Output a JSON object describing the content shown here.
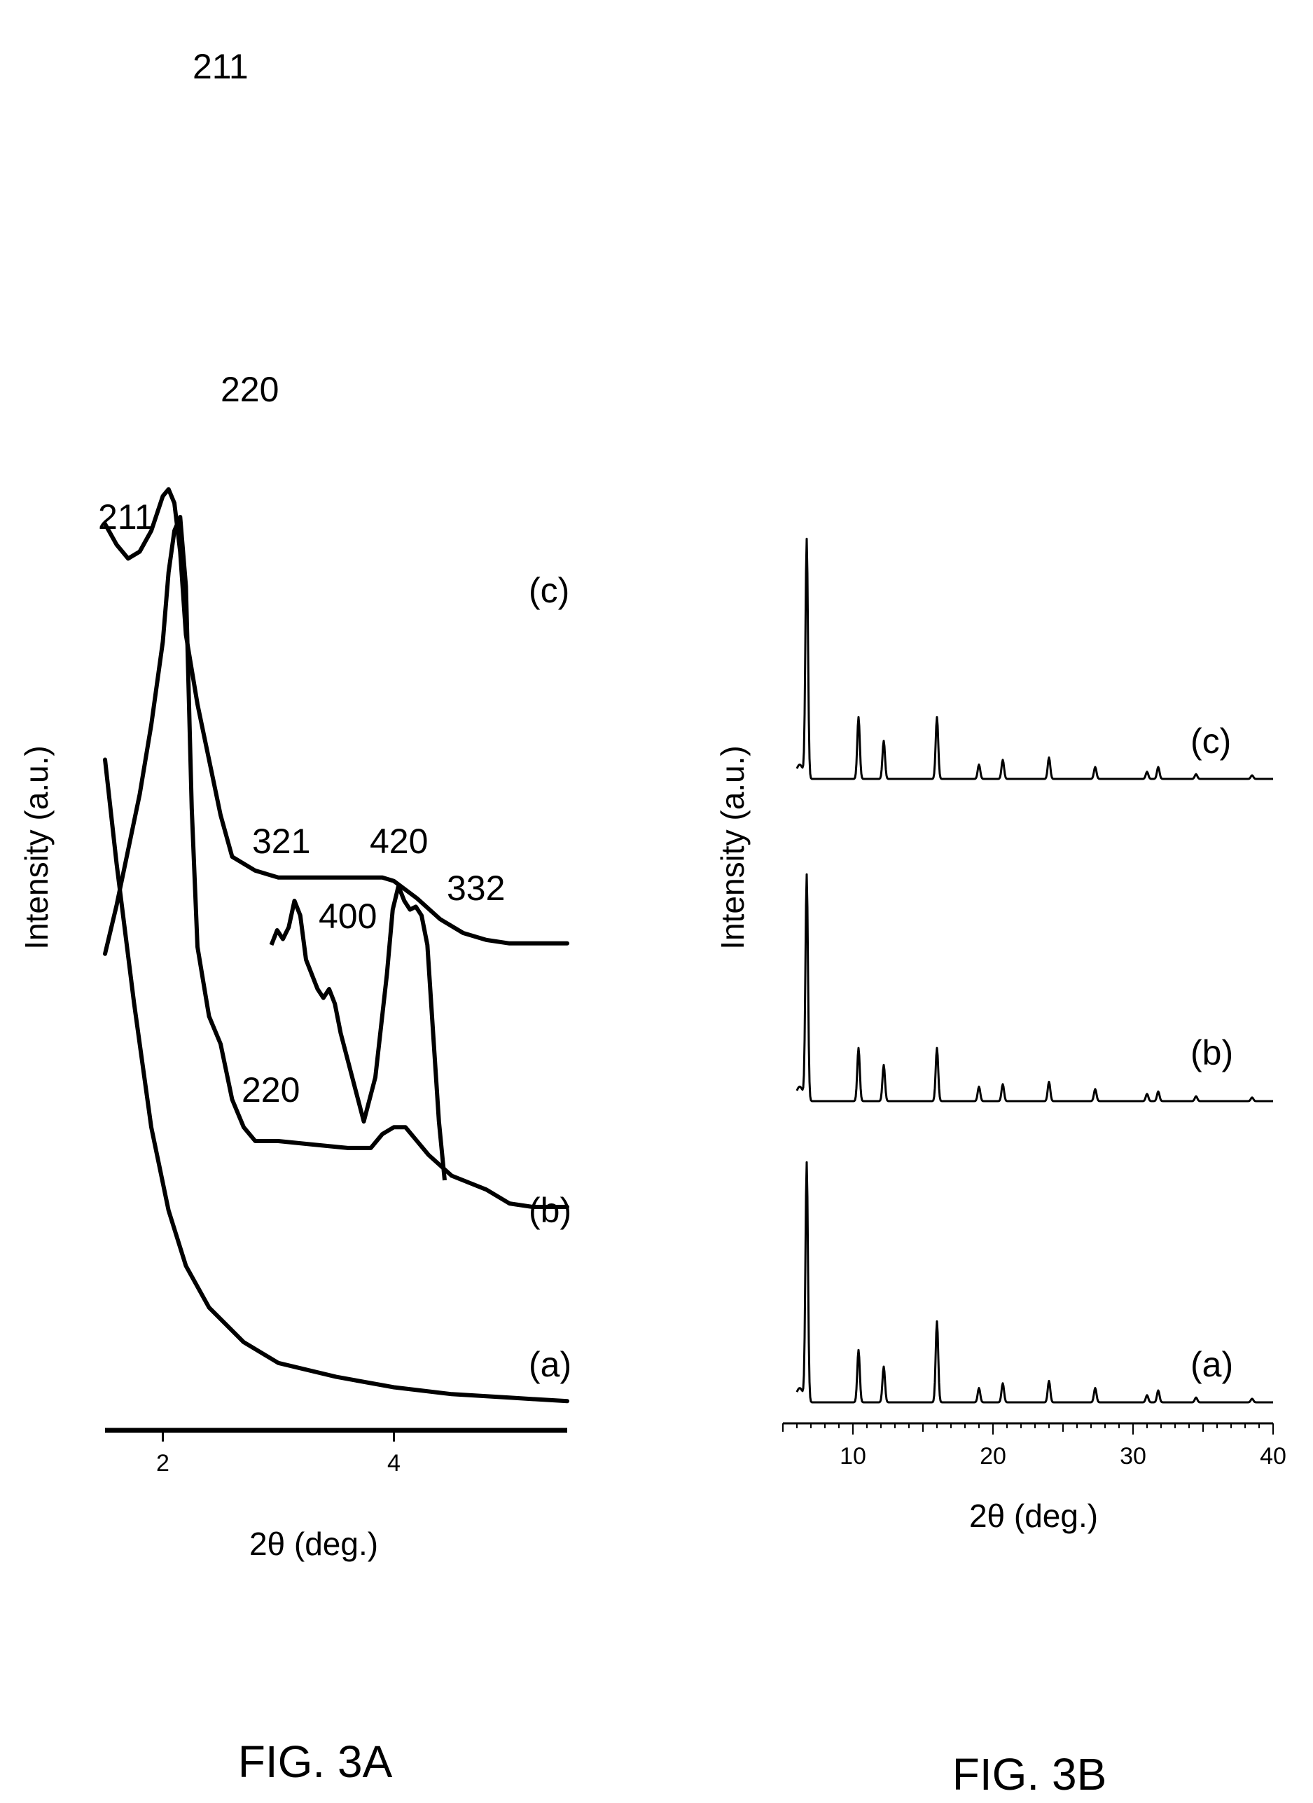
{
  "chart_data": [
    {
      "id": "fig3a",
      "type": "line",
      "caption": "FIG. 3A",
      "xlabel": "2θ (deg.)",
      "ylabel": "Intensity (a.u.)",
      "xlim": [
        1.5,
        5.5
      ],
      "xticks": [
        2,
        4
      ],
      "stacked": true,
      "grid": false,
      "series": [
        {
          "name": "(a)",
          "offset": 0,
          "x": [
            1.5,
            1.6,
            1.75,
            1.9,
            2.05,
            2.2,
            2.4,
            2.7,
            3.0,
            3.5,
            4.0,
            4.5,
            5.0,
            5.5
          ],
          "y": [
            95,
            80,
            60,
            42,
            30,
            22,
            16,
            11,
            8,
            6,
            4.5,
            3.5,
            3,
            2.5
          ]
        },
        {
          "name": "(b)",
          "offset": 30,
          "x": [
            1.5,
            1.6,
            1.7,
            1.8,
            1.9,
            2.0,
            2.05,
            2.1,
            2.15,
            2.2,
            2.25,
            2.3,
            2.4,
            2.5,
            2.6,
            2.7,
            2.8,
            3.0,
            3.3,
            3.6,
            3.8,
            3.9,
            4.0,
            4.1,
            4.2,
            4.3,
            4.5,
            4.8,
            5.0,
            5.2,
            5.5
          ],
          "y": [
            37,
            44,
            52,
            60,
            70,
            82,
            92,
            98,
            100,
            90,
            58,
            38,
            28,
            24,
            16,
            12,
            10,
            10,
            9.5,
            9,
            9,
            11,
            12,
            12,
            10,
            8,
            5,
            3,
            1,
            0.5,
            0.5
          ]
        },
        {
          "name": "(c)",
          "offset": 68,
          "x": [
            1.5,
            1.6,
            1.7,
            1.8,
            1.9,
            2.0,
            2.05,
            2.1,
            2.15,
            2.2,
            2.3,
            2.4,
            2.5,
            2.6,
            2.8,
            3.0,
            3.5,
            3.9,
            4.0,
            4.2,
            4.4,
            4.6,
            4.8,
            5.0,
            5.5
          ],
          "y": [
            61,
            58,
            56,
            57,
            60,
            65,
            66,
            64,
            57,
            45,
            35,
            27,
            19,
            13,
            11,
            10,
            10,
            10,
            9.5,
            7,
            4,
            2,
            1,
            0.5,
            0.5
          ]
        }
      ],
      "inset": {
        "series": "(b)",
        "x": [
          3.0,
          3.05,
          3.1,
          3.15,
          3.2,
          3.25,
          3.3,
          3.4,
          3.45,
          3.5,
          3.55,
          3.6,
          3.7,
          3.8,
          3.9,
          4.0,
          4.05,
          4.1,
          4.15,
          4.2,
          4.25,
          4.3,
          4.35,
          4.4,
          4.45,
          4.5
        ],
        "y": [
          0.8,
          0.85,
          0.82,
          0.86,
          0.95,
          0.9,
          0.75,
          0.65,
          0.62,
          0.65,
          0.6,
          0.5,
          0.35,
          0.2,
          0.35,
          0.7,
          0.92,
          1.0,
          0.95,
          0.92,
          0.93,
          0.9,
          0.8,
          0.5,
          0.2,
          0.0
        ],
        "labels": [
          "321",
          "400",
          "420",
          "332"
        ]
      },
      "annotations": [
        "211",
        "220",
        "211",
        "220"
      ]
    },
    {
      "id": "fig3b",
      "type": "line",
      "caption": "FIG. 3B",
      "xlabel": "2θ (deg.)",
      "ylabel": "Intensity (a.u.)",
      "xlim": [
        5,
        40
      ],
      "xticks": [
        10,
        20,
        30,
        40
      ],
      "stacked": true,
      "grid": false,
      "peaks": [
        {
          "x": 6.7,
          "heights": [
            100,
            93,
            100
          ]
        },
        {
          "x": 10.4,
          "heights": [
            22,
            22,
            26
          ]
        },
        {
          "x": 12.2,
          "heights": [
            15,
            15,
            16
          ]
        },
        {
          "x": 16.0,
          "heights": [
            34,
            22,
            26
          ]
        },
        {
          "x": 19.0,
          "heights": [
            6,
            6,
            6
          ]
        },
        {
          "x": 20.7,
          "heights": [
            8,
            7,
            8
          ]
        },
        {
          "x": 24.0,
          "heights": [
            9,
            8,
            9
          ]
        },
        {
          "x": 27.3,
          "heights": [
            6,
            5,
            5
          ]
        },
        {
          "x": 31.0,
          "heights": [
            3,
            3,
            3
          ]
        },
        {
          "x": 31.8,
          "heights": [
            5,
            4,
            5
          ]
        },
        {
          "x": 34.5,
          "heights": [
            2,
            2,
            2
          ]
        },
        {
          "x": 38.5,
          "heights": [
            1.5,
            1.5,
            1.5
          ]
        }
      ],
      "series": [
        {
          "name": "(a)",
          "offset": 0
        },
        {
          "name": "(b)",
          "offset": 100
        },
        {
          "name": "(c)",
          "offset": 200
        }
      ]
    }
  ]
}
